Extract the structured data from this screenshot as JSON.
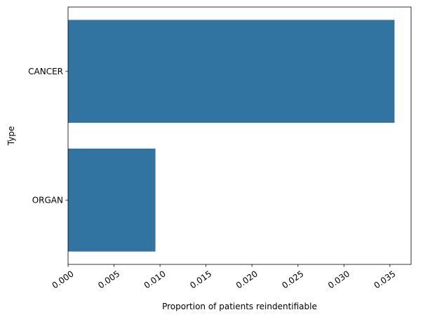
{
  "chart_data": {
    "type": "bar",
    "orientation": "horizontal",
    "categories": [
      "CANCER",
      "ORGAN"
    ],
    "values": [
      0.0355,
      0.0095
    ],
    "xlabel": "Proportion of patients reindentifiable",
    "ylabel": "Type",
    "xlim": [
      0.0,
      0.0373
    ],
    "xticks": [
      "0.000",
      "0.005",
      "0.010",
      "0.015",
      "0.020",
      "0.025",
      "0.030",
      "0.035"
    ],
    "bar_color": "#3274a1",
    "grid": false,
    "legend": "none"
  }
}
